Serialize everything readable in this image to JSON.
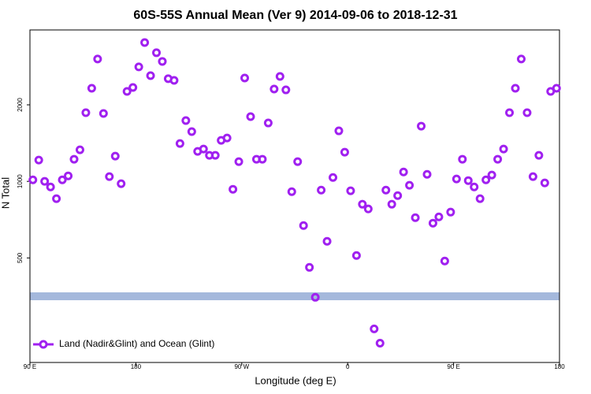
{
  "chart_data": {
    "type": "scatter",
    "title": "60S-55S Annual Mean (Ver 9)   2014-09-06 to 2018-12-31",
    "x_label": "Longitude (deg E)",
    "y_label": "N Total",
    "log_scale_y": true,
    "xlim": [
      90,
      540
    ],
    "ylim": [
      194,
      3940
    ],
    "xticks": [
      {
        "value": 90,
        "label": "90 E"
      },
      180,
      {
        "value": 270,
        "label": "90 W"
      },
      {
        "value": 360,
        "label": "0"
      },
      {
        "value": 450,
        "label": "90 E"
      },
      {
        "value": 540,
        "label": "180"
      }
    ],
    "yticks": [
      500,
      1000,
      2000
    ],
    "legend": "bottom-left",
    "series": [
      {
        "name": "Land (Nadir&Glint) and Ocean (Glint)",
        "color": "#a020f0",
        "x": [
          92.5,
          97.5,
          102.5,
          107.5,
          112.5,
          117.5,
          122.5,
          127.5,
          132.5,
          137.5,
          142.5,
          147.5,
          152.5,
          157.5,
          162.5,
          167.5,
          172.5,
          177.5,
          182.5,
          187.5,
          192.5,
          197.5,
          202.5,
          207.5,
          212.5,
          217.5,
          222.5,
          227.5,
          232.5,
          237.5,
          242.5,
          247.5,
          252.5,
          257.5,
          262.5,
          267.5,
          272.5,
          277.5,
          282.5,
          287.5,
          292.5,
          297.5,
          302.5,
          307.5,
          312.5,
          317.5,
          322.5,
          327.5,
          332.5,
          337.5,
          342.5,
          347.5,
          352.5,
          357.5,
          362.5,
          367.5,
          372.5,
          377.5,
          382.5,
          387.5,
          392.5,
          397.5,
          402.5,
          407.5,
          412.5,
          417.5,
          422.5,
          427.5,
          432.5,
          437.5,
          442.5,
          447.5,
          452.5,
          457.5,
          462.5,
          467.5,
          472.5,
          477.5,
          482.5,
          487.5,
          492.5,
          497.5,
          502.5,
          507.5,
          512.5,
          517.5,
          522.5,
          527.5,
          532.5,
          537.5
        ],
        "values": [
          1014,
          1213,
          1000,
          951,
          855,
          1014,
          1051,
          1222,
          1331,
          1862,
          2323,
          3029,
          1849,
          1044,
          1257,
          979,
          2258,
          2341,
          2819,
          3515,
          2605,
          3205,
          2963,
          2533,
          2496,
          1409,
          1734,
          1569,
          1312,
          1340,
          1266,
          1266,
          1450,
          1481,
          931,
          1196,
          2550,
          1797,
          1222,
          1222,
          1697,
          2307,
          2587,
          2290,
          911,
          1196,
          670,
          459,
          350,
          924,
          581,
          1036,
          1580,
          1303,
          918,
          511,
          813,
          779,
          263,
          231,
          924,
          813,
          879,
          1089,
          965,
          720,
          1649,
          1066,
          685,
          725,
          486,
          757,
          1022,
          1222,
          1007,
          951,
          855,
          1014,
          1059,
          1222,
          1340,
          1862,
          2323,
          3029,
          1862,
          1044,
          1266,
          986,
          2258,
          2323
        ]
      }
    ]
  }
}
